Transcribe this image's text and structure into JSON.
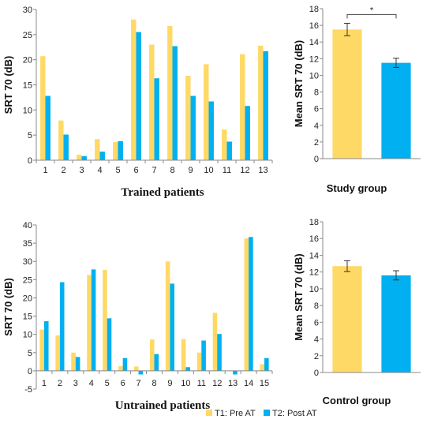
{
  "colors": {
    "pre": "#FFD966",
    "post": "#00B0F0",
    "axis": "#888888",
    "text": "#222222"
  },
  "legend": [
    {
      "label": "T1: Pre AT",
      "color": "#FFD966"
    },
    {
      "label": "T2: Post AT",
      "color": "#00B0F0"
    }
  ],
  "chart_data": [
    {
      "id": "trained",
      "type": "bar",
      "title": "Trained patients",
      "ylabel": "SRT 70 (dB)",
      "xlabel": "",
      "ylim": [
        0,
        30
      ],
      "yticks": [
        0,
        5,
        10,
        15,
        20,
        25,
        30
      ],
      "categories": [
        "1",
        "2",
        "3",
        "4",
        "5",
        "6",
        "7",
        "8",
        "9",
        "10",
        "11",
        "12",
        "13"
      ],
      "series": [
        {
          "name": "T1: Pre AT",
          "values": [
            20.7,
            7.9,
            1.1,
            4.2,
            3.6,
            28.0,
            23.0,
            26.7,
            16.8,
            19.1,
            6.1,
            21.1,
            22.8
          ]
        },
        {
          "name": "T2: Post AT",
          "values": [
            12.8,
            5.1,
            0.8,
            1.7,
            3.8,
            25.5,
            16.3,
            22.7,
            12.8,
            11.7,
            3.7,
            10.8,
            21.7
          ]
        }
      ],
      "grid": false
    },
    {
      "id": "study",
      "type": "bar",
      "title": "Study group",
      "ylabel": "Mean SRT 70 (dB)",
      "xlabel": "",
      "ylim": [
        0,
        18
      ],
      "yticks": [
        0,
        2,
        4,
        6,
        8,
        10,
        12,
        14,
        16,
        18
      ],
      "categories": [
        "T1: Pre AT",
        "T2: Post AT"
      ],
      "values": [
        15.5,
        11.5
      ],
      "errors": [
        0.75,
        0.55
      ],
      "significance": "*",
      "grid": false
    },
    {
      "id": "untrained",
      "type": "bar",
      "title": "Untrained patients",
      "ylabel": "SRT 70 (dB)",
      "xlabel": "",
      "ylim": [
        -5,
        40
      ],
      "yticks": [
        -5,
        0,
        5,
        10,
        15,
        20,
        25,
        30,
        35,
        40
      ],
      "categories": [
        "1",
        "2",
        "3",
        "4",
        "5",
        "6",
        "7",
        "8",
        "9",
        "10",
        "11",
        "12",
        "13",
        "14",
        "15"
      ],
      "series": [
        {
          "name": "T1: Pre AT",
          "values": [
            11.3,
            9.7,
            5.0,
            26.3,
            27.7,
            1.3,
            1.2,
            8.6,
            30.0,
            8.7,
            5.0,
            15.9,
            0,
            36.3,
            1.8
          ]
        },
        {
          "name": "T2: Post AT",
          "values": [
            13.6,
            24.3,
            3.8,
            27.8,
            14.4,
            3.5,
            -1.0,
            4.6,
            23.9,
            1.0,
            8.3,
            10.1,
            -1.0,
            36.7,
            3.5
          ]
        }
      ],
      "grid": false
    },
    {
      "id": "control",
      "type": "bar",
      "title": "Control group",
      "ylabel": "Mean SRT 70 (dB)",
      "xlabel": "",
      "ylim": [
        0,
        18
      ],
      "yticks": [
        0,
        2,
        4,
        6,
        8,
        10,
        12,
        14,
        16,
        18
      ],
      "categories": [
        "T1: Pre AT",
        "T2: Post AT"
      ],
      "values": [
        12.7,
        11.6
      ],
      "errors": [
        0.65,
        0.55
      ],
      "grid": false
    }
  ]
}
